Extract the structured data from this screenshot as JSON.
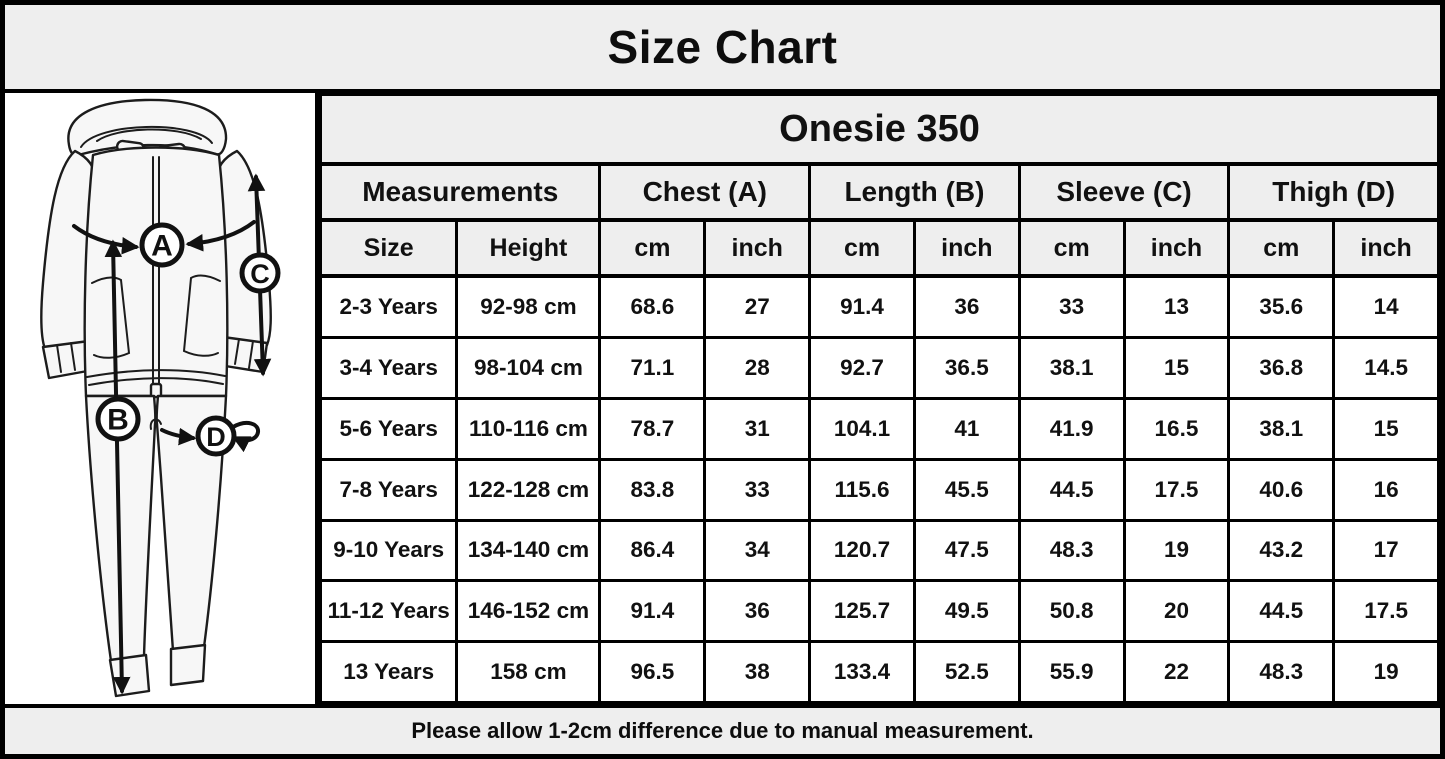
{
  "title": "Size Chart",
  "product_title": "Onesie 350",
  "footer_note": "Please allow 1-2cm difference due to manual measurement.",
  "diagram": {
    "description": "line drawing of a hooded zip-up kids onesie with measurement arrows",
    "labels": {
      "chest": "A",
      "length": "B",
      "sleeve": "C",
      "thigh": "D"
    }
  },
  "table": {
    "group_headers": [
      {
        "label": "Measurements",
        "span": 2
      },
      {
        "label": "Chest (A)",
        "span": 2
      },
      {
        "label": "Length (B)",
        "span": 2
      },
      {
        "label": "Sleeve (C)",
        "span": 2
      },
      {
        "label": "Thigh (D)",
        "span": 2
      }
    ],
    "sub_headers": [
      "Size",
      "Height",
      "cm",
      "inch",
      "cm",
      "inch",
      "cm",
      "inch",
      "cm",
      "inch"
    ],
    "rows": [
      [
        "2-3 Years",
        "92-98 cm",
        "68.6",
        "27",
        "91.4",
        "36",
        "33",
        "13",
        "35.6",
        "14"
      ],
      [
        "3-4 Years",
        "98-104 cm",
        "71.1",
        "28",
        "92.7",
        "36.5",
        "38.1",
        "15",
        "36.8",
        "14.5"
      ],
      [
        "5-6 Years",
        "110-116 cm",
        "78.7",
        "31",
        "104.1",
        "41",
        "41.9",
        "16.5",
        "38.1",
        "15"
      ],
      [
        "7-8 Years",
        "122-128 cm",
        "83.8",
        "33",
        "115.6",
        "45.5",
        "44.5",
        "17.5",
        "40.6",
        "16"
      ],
      [
        "9-10 Years",
        "134-140 cm",
        "86.4",
        "34",
        "120.7",
        "47.5",
        "48.3",
        "19",
        "43.2",
        "17"
      ],
      [
        "11-12 Years",
        "146-152 cm",
        "91.4",
        "36",
        "125.7",
        "49.5",
        "50.8",
        "20",
        "44.5",
        "17.5"
      ],
      [
        "13 Years",
        "158 cm",
        "96.5",
        "38",
        "133.4",
        "52.5",
        "55.9",
        "22",
        "48.3",
        "19"
      ]
    ]
  },
  "colors": {
    "header_bg": "#eeeeee",
    "cell_bg": "#ffffff",
    "border": "#000000",
    "text": "#111111"
  }
}
